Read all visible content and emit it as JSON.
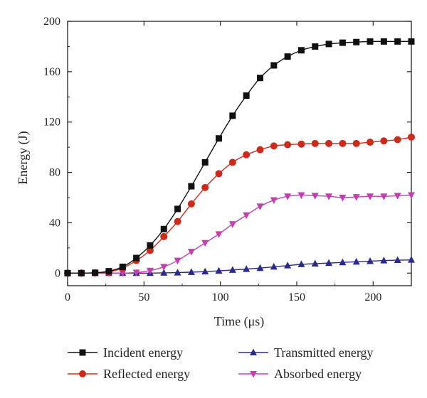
{
  "chart_data": {
    "type": "line",
    "title": "",
    "xlabel": "Time (μs)",
    "ylabel": "Energy (J)",
    "xlim": [
      0,
      225
    ],
    "ylim": [
      -10,
      200
    ],
    "xticks": [
      0,
      50,
      100,
      150,
      200
    ],
    "yticks": [
      0,
      40,
      80,
      120,
      160,
      200
    ],
    "grid": false,
    "legend_position": "bottom",
    "x": [
      0,
      9,
      18,
      27,
      36,
      45,
      54,
      63,
      72,
      81,
      90,
      99,
      108,
      117,
      126,
      135,
      144,
      153,
      162,
      171,
      180,
      189,
      198,
      207,
      216,
      225
    ],
    "series": [
      {
        "name": "Incident energy",
        "color": "#111111",
        "marker": "square",
        "values": [
          0,
          0,
          0.3,
          1.5,
          5,
          12,
          22,
          35,
          51,
          69,
          88,
          107,
          125,
          141,
          155,
          165,
          172,
          177,
          180,
          182,
          183,
          183.5,
          184,
          184,
          184,
          184
        ]
      },
      {
        "name": "Reflected energy",
        "color": "#cc2a1a",
        "marker": "circle",
        "values": [
          0,
          0,
          0.2,
          1,
          4,
          10,
          18,
          29,
          41,
          55,
          68,
          79,
          88,
          94,
          98,
          101,
          102,
          102.5,
          103,
          103,
          103,
          103,
          104,
          105,
          106,
          108
        ]
      },
      {
        "name": "Transmitted energy",
        "color": "#2b2a8c",
        "marker": "triangle-up",
        "values": [
          0,
          0,
          0,
          0,
          0,
          0,
          0,
          0.2,
          0.4,
          0.8,
          1.2,
          1.8,
          2.5,
          3.2,
          4,
          5,
          6,
          7,
          7.5,
          8,
          8.5,
          9,
          9.5,
          10,
          10.3,
          10.5
        ]
      },
      {
        "name": "Absorbed energy",
        "color": "#c040b0",
        "marker": "triangle-down",
        "values": [
          0,
          0,
          0,
          0,
          0,
          0.5,
          2,
          5,
          10,
          17,
          24,
          31,
          39,
          46,
          53,
          58,
          61,
          62,
          61.5,
          61,
          60,
          60.5,
          61,
          61,
          61.5,
          62
        ]
      }
    ]
  }
}
